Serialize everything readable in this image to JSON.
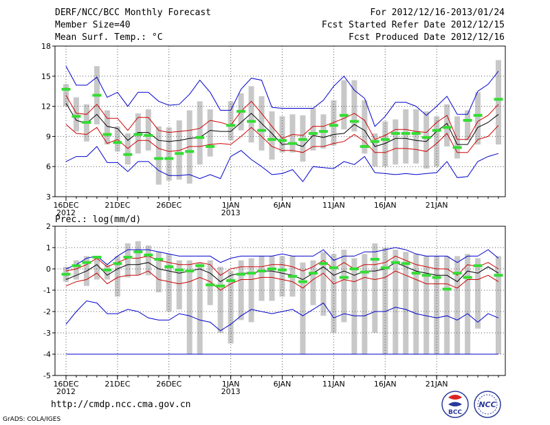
{
  "header": {
    "title": "DERF/NCC/BCC Monthly Forecast",
    "member_size": "Member Size=40",
    "variable": "Mean Surf. Temp.: °C",
    "period": "For 2012/12/16-2013/01/24",
    "start_date": "Fcst Started Refer Date 2012/12/15",
    "produced_date": "Fcst Produced Date 2012/12/16"
  },
  "footer": {
    "url": "http://cmdp.ncc.cma.gov.cn",
    "grads": "GrADS: COLA/IGES",
    "logo_bcc": "BCC",
    "logo_ncc": "NCC"
  },
  "colors": {
    "box": "#c8c8c8",
    "median": "#33dd33",
    "mean": "#000000",
    "sd": "#cc0000",
    "extreme": "#0000cc",
    "grid": "#555555"
  },
  "chart_data": [
    {
      "type": "box",
      "title": "",
      "ylabel": "",
      "ylim": [
        3,
        18
      ],
      "yticks": [
        3,
        6,
        9,
        12,
        15,
        18
      ],
      "ytick_labels": [
        "3",
        "6",
        "9",
        "12",
        "15",
        "18"
      ],
      "x_tick_index": [
        0,
        5,
        10,
        16,
        21,
        26,
        31,
        36
      ],
      "x_tick_labels": [
        "16DEC",
        "21DEC",
        "26DEC",
        "1JAN",
        "6JAN",
        "11JAN",
        "16JAN",
        "21JAN"
      ],
      "x_year_labels": [
        {
          "index": 0,
          "label": "2012"
        },
        {
          "index": 16,
          "label": "2013"
        }
      ],
      "series": [
        {
          "name": "mean",
          "values": [
            12.3,
            10.6,
            10.3,
            11.2,
            10.0,
            9.8,
            8.6,
            9.4,
            9.4,
            8.6,
            8.5,
            8.6,
            8.8,
            8.9,
            9.6,
            9.5,
            9.5,
            10.4,
            11.3,
            10.3,
            9.3,
            8.2,
            8.3,
            8.0,
            9.1,
            8.9,
            9.2,
            9.3,
            10.2,
            9.6,
            8.0,
            8.3,
            8.8,
            8.8,
            8.6,
            8.5,
            9.5,
            10.3,
            8.2,
            8.2,
            9.9,
            10.4,
            11.2
          ]
        },
        {
          "name": "mean+sd",
          "values": [
            13.1,
            11.3,
            11.2,
            12.2,
            10.8,
            10.8,
            9.6,
            10.9,
            10.9,
            9.6,
            9.4,
            9.5,
            9.6,
            9.8,
            10.6,
            10.4,
            10.1,
            11.5,
            12.5,
            11.3,
            10.0,
            8.8,
            9.2,
            9.1,
            10.0,
            10.0,
            10.4,
            10.8,
            11.3,
            10.6,
            8.7,
            9.1,
            9.7,
            9.7,
            9.5,
            9.4,
            10.4,
            11.1,
            8.7,
            8.7,
            10.5,
            11.1,
            12.2
          ]
        },
        {
          "name": "mean-sd",
          "values": [
            10.2,
            9.3,
            9.2,
            9.9,
            8.3,
            8.7,
            7.8,
            8.6,
            8.6,
            7.8,
            7.5,
            7.6,
            8.0,
            8.0,
            8.2,
            8.3,
            8.2,
            9.0,
            9.9,
            9.0,
            8.0,
            7.6,
            7.6,
            7.4,
            8.0,
            8.0,
            8.3,
            8.5,
            9.2,
            8.5,
            7.4,
            7.4,
            7.8,
            7.8,
            7.7,
            7.5,
            8.3,
            9.3,
            7.4,
            7.4,
            8.7,
            9.0,
            10.1
          ]
        },
        {
          "name": "max",
          "values": [
            16.0,
            14.1,
            14.1,
            14.9,
            12.9,
            13.4,
            12.0,
            13.4,
            13.4,
            12.5,
            12.1,
            12.2,
            13.2,
            14.6,
            13.4,
            11.6,
            11.6,
            13.7,
            14.8,
            14.6,
            11.9,
            11.8,
            11.8,
            11.8,
            11.8,
            12.6,
            14.0,
            15.0,
            13.6,
            12.8,
            10.0,
            11.0,
            12.4,
            12.4,
            12.0,
            11.1,
            12.0,
            13.0,
            11.2,
            11.2,
            13.5,
            14.2,
            15.5
          ]
        },
        {
          "name": "min",
          "values": [
            6.5,
            7.0,
            7.0,
            8.0,
            6.4,
            6.4,
            5.5,
            6.5,
            6.5,
            5.6,
            5.1,
            5.1,
            5.2,
            4.8,
            5.2,
            4.8,
            7.0,
            7.6,
            6.7,
            6.0,
            5.2,
            5.3,
            5.7,
            4.5,
            6.0,
            5.9,
            5.8,
            6.5,
            6.2,
            7.0,
            5.4,
            5.3,
            5.2,
            5.3,
            5.2,
            5.3,
            5.4,
            6.5,
            4.9,
            5.0,
            6.5,
            7.0,
            7.3
          ]
        },
        {
          "name": "median",
          "values": [
            13.7,
            11.0,
            10.4,
            13.1,
            9.2,
            8.4,
            7.2,
            9.2,
            9.1,
            6.8,
            6.8,
            7.3,
            7.5,
            8.9,
            8.0,
            null,
            10.1,
            11.5,
            10.5,
            9.6,
            8.7,
            8.6,
            8.3,
            8.7,
            9.3,
            9.5,
            10.1,
            11.1,
            10.5,
            8.0,
            8.5,
            8.7,
            9.3,
            9.3,
            9.3,
            8.9,
            9.6,
            9.9,
            7.9,
            10.6,
            11.1,
            null,
            12.7
          ]
        },
        {
          "name": "box_low",
          "values": [
            12.0,
            9.5,
            8.5,
            10.2,
            8.2,
            7.5,
            6.2,
            7.3,
            7.6,
            4.2,
            4.6,
            4.7,
            4.3,
            6.2,
            7.0,
            null,
            8.6,
            9.6,
            8.4,
            7.6,
            6.7,
            7.4,
            7.4,
            6.5,
            7.6,
            7.8,
            8.1,
            9.7,
            9.5,
            7.3,
            6.0,
            6.0,
            6.2,
            6.3,
            6.3,
            5.8,
            6.0,
            8.0,
            6.8,
            8.6,
            8.2,
            null,
            8.2
          ]
        },
        {
          "name": "box_high",
          "values": [
            14.2,
            12.9,
            12.2,
            16.0,
            11.6,
            10.0,
            9.3,
            11.3,
            11.7,
            10.0,
            9.9,
            10.6,
            11.6,
            12.5,
            11.7,
            null,
            12.5,
            13.3,
            14.0,
            13.0,
            11.5,
            11.0,
            11.2,
            11.1,
            11.8,
            11.2,
            12.6,
            14.6,
            14.6,
            12.6,
            9.3,
            10.5,
            10.7,
            11.7,
            11.7,
            11.5,
            11.0,
            12.2,
            11.0,
            11.6,
            13.4,
            null,
            16.6
          ]
        }
      ]
    },
    {
      "type": "box",
      "title": "Prec.: log(mm/d)",
      "ylabel": "",
      "ylim": [
        -5,
        2
      ],
      "yticks": [
        -5,
        -4,
        -3,
        -2,
        -1,
        0,
        1,
        2
      ],
      "ytick_labels": [
        "-5",
        "-4",
        "-3",
        "-2",
        "-1",
        "0",
        "1",
        "2"
      ],
      "x_tick_index": [
        0,
        5,
        10,
        16,
        21,
        26,
        31,
        36
      ],
      "x_tick_labels": [
        "16DEC",
        "21DEC",
        "26DEC",
        "1JAN",
        "6JAN",
        "11JAN",
        "16JAN",
        "21JAN"
      ],
      "x_year_labels": [
        {
          "index": 0,
          "label": "2012"
        },
        {
          "index": 16,
          "label": "2013"
        }
      ],
      "series": [
        {
          "name": "mean",
          "values": [
            -0.5,
            -0.3,
            -0.1,
            0.2,
            -0.3,
            0.0,
            0.2,
            0.2,
            0.3,
            0.0,
            -0.1,
            -0.2,
            -0.1,
            0.0,
            -0.2,
            -0.6,
            -0.3,
            -0.2,
            -0.2,
            -0.1,
            -0.1,
            -0.2,
            -0.3,
            -0.5,
            -0.2,
            0.1,
            -0.3,
            -0.1,
            -0.3,
            -0.1,
            -0.1,
            0.0,
            0.3,
            0.1,
            -0.1,
            -0.2,
            -0.3,
            -0.3,
            -0.6,
            -0.1,
            -0.2,
            0.1,
            -0.2
          ]
        },
        {
          "name": "mean+sd",
          "values": [
            -0.1,
            0.0,
            0.2,
            0.5,
            0.1,
            0.3,
            0.5,
            0.5,
            0.6,
            0.4,
            0.3,
            0.2,
            0.2,
            0.3,
            0.2,
            -0.3,
            0.0,
            0.1,
            0.1,
            0.1,
            0.2,
            0.2,
            0.1,
            -0.1,
            0.1,
            0.4,
            0.0,
            0.3,
            0.0,
            0.2,
            0.2,
            0.3,
            0.6,
            0.4,
            0.2,
            0.1,
            0.0,
            0.0,
            -0.3,
            0.2,
            0.1,
            0.3,
            0.0
          ]
        },
        {
          "name": "mean-sd",
          "values": [
            -0.8,
            -0.6,
            -0.5,
            -0.2,
            -0.7,
            -0.4,
            -0.3,
            -0.3,
            -0.1,
            -0.5,
            -0.6,
            -0.7,
            -0.6,
            -0.4,
            -0.6,
            -1.0,
            -0.7,
            -0.5,
            -0.5,
            -0.4,
            -0.4,
            -0.5,
            -0.6,
            -0.9,
            -0.5,
            -0.2,
            -0.7,
            -0.5,
            -0.6,
            -0.4,
            -0.5,
            -0.4,
            -0.1,
            -0.3,
            -0.5,
            -0.7,
            -0.7,
            -0.7,
            -0.9,
            -0.5,
            -0.5,
            -0.3,
            -0.6
          ]
        },
        {
          "name": "max",
          "values": [
            0.0,
            0.2,
            0.5,
            0.6,
            0.2,
            0.6,
            0.9,
            0.9,
            0.9,
            0.8,
            0.7,
            0.6,
            0.6,
            0.6,
            0.6,
            0.3,
            0.5,
            0.6,
            0.6,
            0.6,
            0.6,
            0.7,
            0.6,
            0.6,
            0.6,
            0.9,
            0.4,
            0.6,
            0.6,
            0.8,
            0.8,
            0.9,
            1.0,
            0.9,
            0.7,
            0.6,
            0.6,
            0.6,
            0.3,
            0.6,
            0.6,
            0.9,
            0.5
          ]
        },
        {
          "name": "min",
          "values": [
            -2.6,
            -2.0,
            -1.5,
            -1.6,
            -2.1,
            -2.1,
            -1.9,
            -2.0,
            -2.3,
            -2.4,
            -2.4,
            -2.1,
            -2.2,
            -2.4,
            -2.5,
            -2.9,
            -2.6,
            -2.2,
            -1.9,
            -2.0,
            -2.1,
            -2.0,
            -1.9,
            -2.2,
            -1.9,
            -1.6,
            -2.3,
            -2.1,
            -2.2,
            -2.2,
            -2.0,
            -2.0,
            -1.8,
            -1.9,
            -2.1,
            -2.2,
            -2.3,
            -2.2,
            -2.4,
            -2.1,
            -2.5,
            -2.1,
            -2.3
          ]
        },
        {
          "name": "lower_bound",
          "values": [
            -4,
            -4,
            -4,
            -4,
            -4,
            -4,
            -4,
            -4,
            -4,
            -4,
            -4,
            -4,
            -4,
            -4,
            -4,
            -4,
            -4,
            -4,
            -4,
            -4,
            -4,
            -4,
            -4,
            -4,
            -4,
            -4,
            -4,
            -4,
            -4,
            -4,
            -4,
            -4,
            -4,
            -4,
            -4,
            -4,
            -4,
            -4,
            -4,
            -4,
            -4,
            -4,
            -4
          ]
        },
        {
          "name": "median",
          "values": [
            -0.25,
            0.15,
            0.3,
            0.55,
            -0.05,
            0.25,
            0.55,
            0.8,
            0.65,
            0.45,
            0.1,
            -0.05,
            -0.1,
            0.15,
            -0.75,
            -0.8,
            -0.55,
            -0.25,
            -0.2,
            -0.1,
            0.0,
            -0.05,
            -0.35,
            -0.6,
            -0.2,
            0.25,
            0.05,
            -0.4,
            0.0,
            -0.15,
            0.45,
            0.05,
            0.3,
            0.25,
            -0.2,
            -0.3,
            -0.4,
            -0.95,
            -0.2,
            -0.4,
            0.15,
            null,
            -0.3
          ]
        },
        {
          "name": "box_low",
          "values": [
            -0.6,
            -0.5,
            -0.8,
            -0.5,
            -0.5,
            -1.3,
            -0.4,
            -0.3,
            -0.3,
            -1.1,
            -2.0,
            -1.9,
            -4.0,
            -4.0,
            -1.7,
            -3.0,
            -3.5,
            -2.4,
            -2.5,
            -1.5,
            -1.5,
            -1.3,
            -1.3,
            -4.0,
            -1.7,
            -2.2,
            -3.0,
            -2.5,
            -4.0,
            -4.0,
            -3.0,
            -4.0,
            -4.0,
            -4.0,
            -4.0,
            -4.0,
            -4.0,
            -4.0,
            -4.0,
            -4.0,
            -2.8,
            null,
            -4.0
          ]
        },
        {
          "name": "box_high",
          "values": [
            0.1,
            0.4,
            0.6,
            0.6,
            0.2,
            0.6,
            1.2,
            1.3,
            1.1,
            0.8,
            0.7,
            0.4,
            0.4,
            0.3,
            0.4,
            0.1,
            -0.1,
            0.4,
            0.5,
            0.6,
            0.6,
            0.6,
            0.6,
            0.3,
            0.4,
            0.8,
            0.7,
            0.9,
            0.5,
            0.7,
            1.2,
            1.0,
            0.9,
            0.8,
            0.7,
            0.6,
            0.6,
            0.6,
            0.6,
            0.7,
            0.5,
            null,
            0.6
          ]
        }
      ]
    }
  ]
}
